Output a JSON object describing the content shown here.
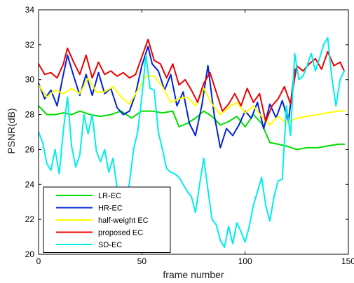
{
  "chart_data": {
    "type": "line",
    "title": "",
    "xlabel": "frame number",
    "ylabel": "PSNR(dB)",
    "xlim": [
      0,
      150
    ],
    "ylim": [
      20,
      34
    ],
    "xticks": [
      0,
      50,
      100,
      150
    ],
    "yticks": [
      20,
      22,
      24,
      26,
      28,
      30,
      32,
      34
    ],
    "grid": false,
    "legend_position": "bottom-left",
    "series": [
      {
        "name": "LR-EC",
        "color": "#00dd00",
        "x": [
          0,
          4,
          8,
          12,
          16,
          20,
          25,
          30,
          35,
          40,
          45,
          50,
          55,
          60,
          65,
          68,
          72,
          76,
          80,
          84,
          88,
          92,
          96,
          100,
          104,
          108,
          112,
          116,
          120,
          125,
          130,
          135,
          140,
          145,
          148
        ],
        "y": [
          28.5,
          28.0,
          28.0,
          28.1,
          28.0,
          28.2,
          28.0,
          27.9,
          28.0,
          28.2,
          27.8,
          28.2,
          28.2,
          28.1,
          28.2,
          27.3,
          27.5,
          27.8,
          28.2,
          27.9,
          27.4,
          27.6,
          27.9,
          27.3,
          28.0,
          27.5,
          26.4,
          26.3,
          26.2,
          26.0,
          26.1,
          26.1,
          26.2,
          26.3,
          26.3
        ]
      },
      {
        "name": "HR-EC",
        "color": "#0022dd",
        "x": [
          0,
          3,
          6,
          9,
          12,
          14,
          17,
          20,
          23,
          26,
          29,
          32,
          35,
          38,
          41,
          44,
          47,
          50,
          53,
          55,
          58,
          61,
          64,
          67,
          70,
          73,
          76,
          79,
          82,
          85,
          88,
          91,
          94,
          97,
          100,
          103,
          106,
          109,
          112,
          115,
          118,
          121,
          124
        ],
        "y": [
          29.8,
          28.9,
          29.4,
          28.5,
          30.3,
          31.4,
          30.2,
          29.1,
          30.3,
          29.1,
          30.4,
          29.2,
          29.5,
          28.4,
          28.0,
          28.2,
          29.2,
          30.8,
          31.9,
          30.9,
          30.5,
          29.4,
          30.3,
          28.5,
          29.3,
          27.5,
          26.8,
          28.5,
          30.8,
          28.0,
          26.1,
          27.2,
          26.8,
          27.4,
          28.2,
          27.8,
          28.7,
          27.2,
          28.6,
          27.8,
          28.8,
          27.6,
          30.6
        ]
      },
      {
        "name": "half-weight EC",
        "color": "#ffff00",
        "x": [
          0,
          4,
          8,
          12,
          16,
          20,
          24,
          28,
          32,
          36,
          40,
          44,
          48,
          52,
          56,
          60,
          64,
          68,
          72,
          76,
          80,
          84,
          88,
          92,
          96,
          100,
          104,
          108,
          112,
          116,
          120,
          125,
          130,
          135,
          140,
          145,
          148
        ],
        "y": [
          29.7,
          29.0,
          29.4,
          29.2,
          29.5,
          29.2,
          30.1,
          29.3,
          29.3,
          29.6,
          29.0,
          28.6,
          29.4,
          30.2,
          30.2,
          29.6,
          28.7,
          28.9,
          29.0,
          28.5,
          29.5,
          28.6,
          28.0,
          28.4,
          28.7,
          28.1,
          28.5,
          27.9,
          27.4,
          27.9,
          27.5,
          27.8,
          27.9,
          28.0,
          28.1,
          28.2,
          28.2
        ]
      },
      {
        "name": "proposed EC",
        "color": "#ee0000",
        "x": [
          0,
          3,
          6,
          9,
          12,
          14,
          17,
          20,
          23,
          26,
          29,
          32,
          35,
          38,
          41,
          44,
          47,
          50,
          53,
          56,
          59,
          62,
          65,
          68,
          71,
          74,
          77,
          80,
          83,
          86,
          89,
          92,
          95,
          98,
          101,
          104,
          107,
          110,
          113,
          116,
          119,
          122,
          125,
          128,
          131,
          134,
          137,
          140,
          143,
          146,
          148
        ],
        "y": [
          30.9,
          30.3,
          30.4,
          30.1,
          30.9,
          31.8,
          31.0,
          30.3,
          31.4,
          30.1,
          31.0,
          30.3,
          30.5,
          30.2,
          30.4,
          30.1,
          30.3,
          31.3,
          32.3,
          31.1,
          30.9,
          30.1,
          30.9,
          29.7,
          30.0,
          29.4,
          28.7,
          29.8,
          30.4,
          29.3,
          28.2,
          28.6,
          29.2,
          28.5,
          29.5,
          28.7,
          29.2,
          27.6,
          28.5,
          28.9,
          29.6,
          28.6,
          30.8,
          30.5,
          30.9,
          31.2,
          30.6,
          31.6,
          30.8,
          31.0,
          30.5
        ]
      },
      {
        "name": "SD-EC",
        "color": "#00eeee",
        "x": [
          0,
          2,
          4,
          6,
          8,
          10,
          12,
          14,
          16,
          18,
          20,
          22,
          24,
          26,
          28,
          30,
          32,
          34,
          36,
          38,
          40,
          42,
          44,
          46,
          48,
          50,
          52,
          54,
          56,
          58,
          60,
          62,
          64,
          66,
          68,
          70,
          72,
          74,
          76,
          78,
          80,
          82,
          84,
          86,
          88,
          90,
          92,
          94,
          96,
          98,
          100,
          102,
          104,
          106,
          108,
          110,
          112,
          114,
          116,
          118,
          120,
          122,
          124,
          126,
          128,
          130,
          132,
          134,
          136,
          138,
          140,
          142,
          144,
          146,
          148
        ],
        "y": [
          27.0,
          26.4,
          25.2,
          24.8,
          26.0,
          24.6,
          27.1,
          29.0,
          26.2,
          25.0,
          25.7,
          28.0,
          26.9,
          28.0,
          25.9,
          25.3,
          26.0,
          24.7,
          25.5,
          23.8,
          23.4,
          22.1,
          24.1,
          26.0,
          27.0,
          29.0,
          31.4,
          29.5,
          29.4,
          27.0,
          26.0,
          24.9,
          24.7,
          24.6,
          24.4,
          24.0,
          23.6,
          23.3,
          22.4,
          24.0,
          25.5,
          23.7,
          22.0,
          21.7,
          20.8,
          20.4,
          21.6,
          20.6,
          21.8,
          21.3,
          20.7,
          21.6,
          22.8,
          23.6,
          24.4,
          22.8,
          21.9,
          23.3,
          24.2,
          24.3,
          28.5,
          26.8,
          31.5,
          30.0,
          30.2,
          30.8,
          31.5,
          30.5,
          31.2,
          32.0,
          32.4,
          30.1,
          28.5,
          30.0,
          30.5
        ]
      }
    ]
  }
}
